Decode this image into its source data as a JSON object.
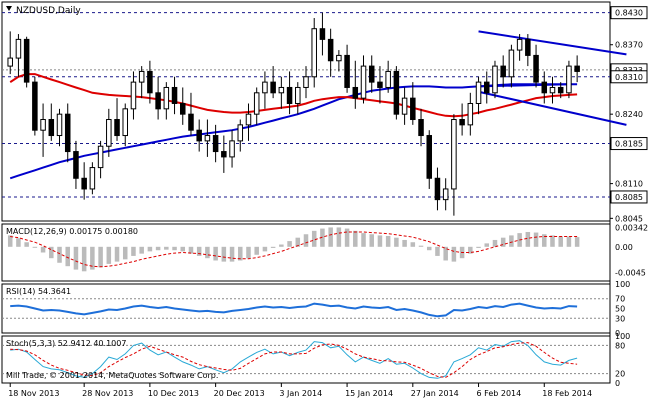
{
  "chart_data": [
    {
      "panel": "price",
      "type": "candlestick",
      "title": "NZDUSD,Daily",
      "ylim": [
        0.804,
        0.845
      ],
      "y_ticks": [
        "0.8430",
        "0.8370",
        "0.8323",
        "0.8310",
        "0.8240",
        "0.8185",
        "0.8110",
        "0.8085",
        "0.8045"
      ],
      "highlighted_levels": [
        "0.8430",
        "0.8310",
        "0.8185",
        "0.8085"
      ],
      "current_price": "0.8323",
      "indicators": [
        "MA slow (red)",
        "MA fast (blue)",
        "channel lines (blue)"
      ],
      "x_labels": [
        "18 Nov 2013",
        "28 Nov 2013",
        "10 Dec 2013",
        "20 Dec 2013",
        "3 Jan 2014",
        "15 Jan 2014",
        "27 Jan 2014",
        "6 Feb 2014",
        "18 Feb 2014"
      ],
      "candles": [
        {
          "o": 0.833,
          "h": 0.8395,
          "l": 0.8315,
          "c": 0.8345
        },
        {
          "o": 0.8345,
          "h": 0.839,
          "l": 0.831,
          "c": 0.838
        },
        {
          "o": 0.838,
          "h": 0.8385,
          "l": 0.829,
          "c": 0.83
        },
        {
          "o": 0.83,
          "h": 0.831,
          "l": 0.82,
          "c": 0.821
        },
        {
          "o": 0.821,
          "h": 0.826,
          "l": 0.816,
          "c": 0.823
        },
        {
          "o": 0.823,
          "h": 0.826,
          "l": 0.819,
          "c": 0.82
        },
        {
          "o": 0.82,
          "h": 0.825,
          "l": 0.818,
          "c": 0.824
        },
        {
          "o": 0.824,
          "h": 0.826,
          "l": 0.815,
          "c": 0.817
        },
        {
          "o": 0.817,
          "h": 0.819,
          "l": 0.81,
          "c": 0.812
        },
        {
          "o": 0.812,
          "h": 0.815,
          "l": 0.808,
          "c": 0.81
        },
        {
          "o": 0.81,
          "h": 0.815,
          "l": 0.809,
          "c": 0.814
        },
        {
          "o": 0.814,
          "h": 0.819,
          "l": 0.812,
          "c": 0.818
        },
        {
          "o": 0.818,
          "h": 0.825,
          "l": 0.816,
          "c": 0.823
        },
        {
          "o": 0.823,
          "h": 0.827,
          "l": 0.819,
          "c": 0.82
        },
        {
          "o": 0.82,
          "h": 0.826,
          "l": 0.818,
          "c": 0.825
        },
        {
          "o": 0.825,
          "h": 0.832,
          "l": 0.823,
          "c": 0.83
        },
        {
          "o": 0.83,
          "h": 0.833,
          "l": 0.827,
          "c": 0.832
        },
        {
          "o": 0.832,
          "h": 0.834,
          "l": 0.826,
          "c": 0.828
        },
        {
          "o": 0.828,
          "h": 0.831,
          "l": 0.823,
          "c": 0.825
        },
        {
          "o": 0.825,
          "h": 0.83,
          "l": 0.823,
          "c": 0.829
        },
        {
          "o": 0.829,
          "h": 0.831,
          "l": 0.824,
          "c": 0.826
        },
        {
          "o": 0.826,
          "h": 0.829,
          "l": 0.822,
          "c": 0.824
        },
        {
          "o": 0.824,
          "h": 0.828,
          "l": 0.82,
          "c": 0.821
        },
        {
          "o": 0.821,
          "h": 0.823,
          "l": 0.817,
          "c": 0.819
        },
        {
          "o": 0.819,
          "h": 0.823,
          "l": 0.816,
          "c": 0.82
        },
        {
          "o": 0.82,
          "h": 0.822,
          "l": 0.815,
          "c": 0.817
        },
        {
          "o": 0.817,
          "h": 0.82,
          "l": 0.813,
          "c": 0.816
        },
        {
          "o": 0.816,
          "h": 0.821,
          "l": 0.814,
          "c": 0.819
        },
        {
          "o": 0.819,
          "h": 0.823,
          "l": 0.817,
          "c": 0.822
        },
        {
          "o": 0.822,
          "h": 0.826,
          "l": 0.819,
          "c": 0.824
        },
        {
          "o": 0.824,
          "h": 0.829,
          "l": 0.822,
          "c": 0.828
        },
        {
          "o": 0.828,
          "h": 0.832,
          "l": 0.825,
          "c": 0.83
        },
        {
          "o": 0.83,
          "h": 0.833,
          "l": 0.827,
          "c": 0.828
        },
        {
          "o": 0.828,
          "h": 0.831,
          "l": 0.825,
          "c": 0.829
        },
        {
          "o": 0.829,
          "h": 0.832,
          "l": 0.824,
          "c": 0.826
        },
        {
          "o": 0.826,
          "h": 0.83,
          "l": 0.824,
          "c": 0.829
        },
        {
          "o": 0.829,
          "h": 0.833,
          "l": 0.827,
          "c": 0.831
        },
        {
          "o": 0.831,
          "h": 0.842,
          "l": 0.829,
          "c": 0.84
        },
        {
          "o": 0.84,
          "h": 0.843,
          "l": 0.835,
          "c": 0.838
        },
        {
          "o": 0.838,
          "h": 0.84,
          "l": 0.831,
          "c": 0.834
        },
        {
          "o": 0.834,
          "h": 0.836,
          "l": 0.832,
          "c": 0.835
        },
        {
          "o": 0.835,
          "h": 0.837,
          "l": 0.828,
          "c": 0.829
        },
        {
          "o": 0.829,
          "h": 0.834,
          "l": 0.825,
          "c": 0.827
        },
        {
          "o": 0.827,
          "h": 0.835,
          "l": 0.826,
          "c": 0.833
        },
        {
          "o": 0.833,
          "h": 0.835,
          "l": 0.828,
          "c": 0.83
        },
        {
          "o": 0.83,
          "h": 0.833,
          "l": 0.826,
          "c": 0.829
        },
        {
          "o": 0.829,
          "h": 0.834,
          "l": 0.828,
          "c": 0.832
        },
        {
          "o": 0.832,
          "h": 0.833,
          "l": 0.823,
          "c": 0.824
        },
        {
          "o": 0.824,
          "h": 0.829,
          "l": 0.822,
          "c": 0.827
        },
        {
          "o": 0.827,
          "h": 0.83,
          "l": 0.822,
          "c": 0.823
        },
        {
          "o": 0.823,
          "h": 0.825,
          "l": 0.818,
          "c": 0.82
        },
        {
          "o": 0.82,
          "h": 0.821,
          "l": 0.81,
          "c": 0.812
        },
        {
          "o": 0.812,
          "h": 0.814,
          "l": 0.806,
          "c": 0.808
        },
        {
          "o": 0.808,
          "h": 0.812,
          "l": 0.806,
          "c": 0.81
        },
        {
          "o": 0.81,
          "h": 0.824,
          "l": 0.805,
          "c": 0.823
        },
        {
          "o": 0.823,
          "h": 0.826,
          "l": 0.82,
          "c": 0.822
        },
        {
          "o": 0.822,
          "h": 0.828,
          "l": 0.82,
          "c": 0.826
        },
        {
          "o": 0.826,
          "h": 0.831,
          "l": 0.824,
          "c": 0.83
        },
        {
          "o": 0.83,
          "h": 0.832,
          "l": 0.826,
          "c": 0.828
        },
        {
          "o": 0.828,
          "h": 0.834,
          "l": 0.827,
          "c": 0.833
        },
        {
          "o": 0.833,
          "h": 0.835,
          "l": 0.829,
          "c": 0.831
        },
        {
          "o": 0.831,
          "h": 0.837,
          "l": 0.829,
          "c": 0.836
        },
        {
          "o": 0.836,
          "h": 0.839,
          "l": 0.834,
          "c": 0.838
        },
        {
          "o": 0.838,
          "h": 0.839,
          "l": 0.833,
          "c": 0.835
        },
        {
          "o": 0.835,
          "h": 0.837,
          "l": 0.829,
          "c": 0.83
        },
        {
          "o": 0.83,
          "h": 0.832,
          "l": 0.826,
          "c": 0.828
        },
        {
          "o": 0.828,
          "h": 0.831,
          "l": 0.826,
          "c": 0.829
        },
        {
          "o": 0.829,
          "h": 0.83,
          "l": 0.827,
          "c": 0.828
        },
        {
          "o": 0.828,
          "h": 0.834,
          "l": 0.827,
          "c": 0.833
        },
        {
          "o": 0.833,
          "h": 0.835,
          "l": 0.83,
          "c": 0.832
        }
      ],
      "ma_red": [
        0.83,
        0.831,
        0.8315,
        0.8315,
        0.831,
        0.8305,
        0.83,
        0.8295,
        0.829,
        0.8285,
        0.828,
        0.8278,
        0.8276,
        0.8275,
        0.8274,
        0.8273,
        0.8272,
        0.827,
        0.8268,
        0.8266,
        0.8263,
        0.826,
        0.8256,
        0.8252,
        0.8248,
        0.8246,
        0.8244,
        0.8243,
        0.8243,
        0.8244,
        0.8246,
        0.8248,
        0.825,
        0.8252,
        0.8254,
        0.8256,
        0.826,
        0.8265,
        0.8268,
        0.827,
        0.8272,
        0.8272,
        0.827,
        0.8268,
        0.8266,
        0.8264,
        0.8262,
        0.826,
        0.8256,
        0.8252,
        0.8248,
        0.8244,
        0.824,
        0.8237,
        0.8236,
        0.8237,
        0.824,
        0.8243,
        0.8247,
        0.825,
        0.8254,
        0.8258,
        0.8262,
        0.8266,
        0.827,
        0.8272,
        0.8274,
        0.8275,
        0.8276,
        0.8277
      ],
      "ma_blue": [
        0.812,
        0.8125,
        0.813,
        0.8135,
        0.814,
        0.8145,
        0.815,
        0.8154,
        0.8158,
        0.8162,
        0.8165,
        0.8168,
        0.8171,
        0.8174,
        0.8177,
        0.818,
        0.8183,
        0.8186,
        0.8189,
        0.8192,
        0.8195,
        0.8198,
        0.82,
        0.8202,
        0.8204,
        0.8206,
        0.8208,
        0.821,
        0.8213,
        0.8216,
        0.822,
        0.8224,
        0.8228,
        0.8232,
        0.8236,
        0.824,
        0.8245,
        0.825,
        0.8256,
        0.8262,
        0.8268,
        0.8272,
        0.8276,
        0.828,
        0.8284,
        0.8286,
        0.8288,
        0.829,
        0.8291,
        0.8292,
        0.8292,
        0.8292,
        0.8291,
        0.829,
        0.829,
        0.829,
        0.8291,
        0.8292,
        0.8293,
        0.8294,
        0.8295,
        0.8296,
        0.8296,
        0.8296,
        0.8296,
        0.8296,
        0.8296,
        0.8296,
        0.8296,
        0.8296
      ],
      "channel_upper": {
        "from_index": 57,
        "from": 0.8395,
        "to_index": 75,
        "to": 0.8352
      },
      "channel_lower": {
        "from_index": 57,
        "from": 0.8282,
        "to_index": 75,
        "to": 0.822
      },
      "blue_support_segment": {
        "from_index": 57,
        "from": 0.8292,
        "to_index": 68,
        "to": 0.8296
      }
    },
    {
      "panel": "macd",
      "type": "bar",
      "title": "MACD(12,26,9) 0.00175 0.00180",
      "ylim": [
        -0.006,
        0.004
      ],
      "y_ticks": [
        "0.00342",
        "0.00",
        "-0.0045"
      ],
      "values": [
        0.002,
        0.0015,
        0.0008,
        0.0,
        -0.001,
        -0.002,
        -0.0028,
        -0.0034,
        -0.004,
        -0.0043,
        -0.004,
        -0.0036,
        -0.003,
        -0.0026,
        -0.0022,
        -0.0016,
        -0.0012,
        -0.0008,
        -0.0006,
        -0.0005,
        -0.0006,
        -0.0008,
        -0.0012,
        -0.0016,
        -0.002,
        -0.0024,
        -0.0026,
        -0.0026,
        -0.0024,
        -0.002,
        -0.0014,
        -0.0008,
        -0.0002,
        0.0004,
        0.001,
        0.0016,
        0.0022,
        0.0028,
        0.0032,
        0.0034,
        0.0034,
        0.0032,
        0.0028,
        0.0024,
        0.0022,
        0.002,
        0.0019,
        0.0016,
        0.0012,
        0.0008,
        0.0002,
        -0.0006,
        -0.0016,
        -0.0024,
        -0.0026,
        -0.002,
        -0.0012,
        -0.0002,
        0.0006,
        0.0012,
        0.0016,
        0.002,
        0.0024,
        0.0026,
        0.0025,
        0.0022,
        0.002,
        0.0018,
        0.0018,
        0.0017
      ],
      "signal": [
        0.0018,
        0.0016,
        0.0012,
        0.0008,
        0.0002,
        -0.0005,
        -0.0012,
        -0.0019,
        -0.0025,
        -0.0031,
        -0.0034,
        -0.0035,
        -0.0034,
        -0.0032,
        -0.0029,
        -0.0026,
        -0.0022,
        -0.0019,
        -0.0016,
        -0.0013,
        -0.0011,
        -0.001,
        -0.0011,
        -0.0012,
        -0.0014,
        -0.0016,
        -0.0018,
        -0.002,
        -0.0021,
        -0.0021,
        -0.0019,
        -0.0016,
        -0.0012,
        -0.0008,
        -0.0003,
        0.0002,
        0.0007,
        0.0012,
        0.0017,
        0.0021,
        0.0024,
        0.0026,
        0.0026,
        0.0026,
        0.0025,
        0.0024,
        0.0023,
        0.0021,
        0.0019,
        0.0017,
        0.0013,
        0.0009,
        0.0003,
        -0.0003,
        -0.0008,
        -0.001,
        -0.001,
        -0.0008,
        -0.0004,
        0.0,
        0.0004,
        0.0008,
        0.0012,
        0.0015,
        0.0017,
        0.0018,
        0.0018,
        0.0018,
        0.0018,
        0.0018
      ]
    },
    {
      "panel": "rsi",
      "type": "line",
      "title": "RSI(14) 54.3641",
      "ylim": [
        0,
        100
      ],
      "y_ticks": [
        "100",
        "70",
        "50",
        "30",
        "0"
      ],
      "levels": [
        70,
        30
      ],
      "values": [
        55,
        56,
        54,
        50,
        46,
        47,
        46,
        43,
        40,
        38,
        41,
        44,
        48,
        47,
        50,
        54,
        56,
        53,
        51,
        53,
        50,
        48,
        46,
        44,
        45,
        43,
        42,
        45,
        47,
        49,
        52,
        54,
        52,
        53,
        51,
        53,
        54,
        60,
        58,
        55,
        56,
        52,
        50,
        54,
        52,
        51,
        53,
        47,
        49,
        46,
        42,
        37,
        34,
        36,
        47,
        46,
        49,
        53,
        51,
        55,
        53,
        58,
        60,
        56,
        52,
        50,
        51,
        50,
        55,
        54
      ]
    },
    {
      "panel": "stoch",
      "type": "line",
      "title": "Stoch(5,3,3) 52.9412 40.1007",
      "ylim": [
        0,
        100
      ],
      "y_ticks": [
        "100",
        "80",
        "20",
        "0"
      ],
      "levels": [
        80,
        20
      ],
      "main": [
        70,
        72,
        66,
        50,
        35,
        30,
        28,
        22,
        15,
        12,
        20,
        35,
        55,
        50,
        62,
        80,
        85,
        70,
        60,
        66,
        55,
        45,
        38,
        30,
        35,
        28,
        22,
        30,
        45,
        55,
        65,
        72,
        62,
        66,
        58,
        65,
        70,
        88,
        86,
        75,
        78,
        60,
        45,
        55,
        48,
        42,
        52,
        40,
        42,
        32,
        20,
        12,
        10,
        15,
        45,
        52,
        60,
        75,
        70,
        82,
        78,
        88,
        90,
        80,
        60,
        45,
        40,
        38,
        48,
        53
      ],
      "signal": [
        72,
        71,
        68,
        60,
        48,
        38,
        31,
        27,
        22,
        17,
        16,
        22,
        35,
        45,
        54,
        62,
        72,
        78,
        72,
        66,
        60,
        55,
        46,
        39,
        35,
        32,
        29,
        27,
        31,
        42,
        52,
        62,
        66,
        66,
        62,
        62,
        63,
        74,
        81,
        83,
        80,
        72,
        62,
        55,
        52,
        48,
        47,
        45,
        44,
        38,
        31,
        22,
        14,
        12,
        22,
        35,
        50,
        60,
        67,
        75,
        77,
        82,
        85,
        86,
        78,
        65,
        53,
        44,
        42,
        40
      ]
    },
    {
      "panel": "footer",
      "type": "table",
      "copyright": "Mill Trade, © 2001-2014, MetaQuotes Software Corp."
    }
  ]
}
